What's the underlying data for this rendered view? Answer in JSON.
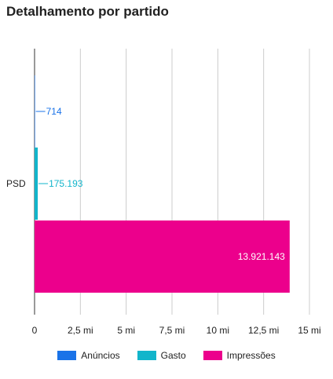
{
  "title": "Detalhamento por partido",
  "chart_data": {
    "type": "bar",
    "orientation": "horizontal",
    "categories": [
      "PSD"
    ],
    "series": [
      {
        "name": "Anúncios",
        "color": "#1a73e8",
        "values": [
          714
        ],
        "label": "714"
      },
      {
        "name": "Gasto",
        "color": "#12b5cb",
        "values": [
          175193
        ],
        "label": "175.193"
      },
      {
        "name": "Impressões",
        "color": "#ec008c",
        "values": [
          13921143
        ],
        "label": "13.921.143"
      }
    ],
    "xlim": [
      0,
      15000000
    ],
    "xticks": [
      {
        "value": 0,
        "label": "0"
      },
      {
        "value": 2500000,
        "label": "2,5 mi"
      },
      {
        "value": 5000000,
        "label": "5 mi"
      },
      {
        "value": 7500000,
        "label": "7,5 mi"
      },
      {
        "value": 10000000,
        "label": "10 mi"
      },
      {
        "value": 12500000,
        "label": "12,5 mi"
      },
      {
        "value": 15000000,
        "label": "15 mi"
      }
    ],
    "grid": true,
    "legend_position": "bottom"
  }
}
